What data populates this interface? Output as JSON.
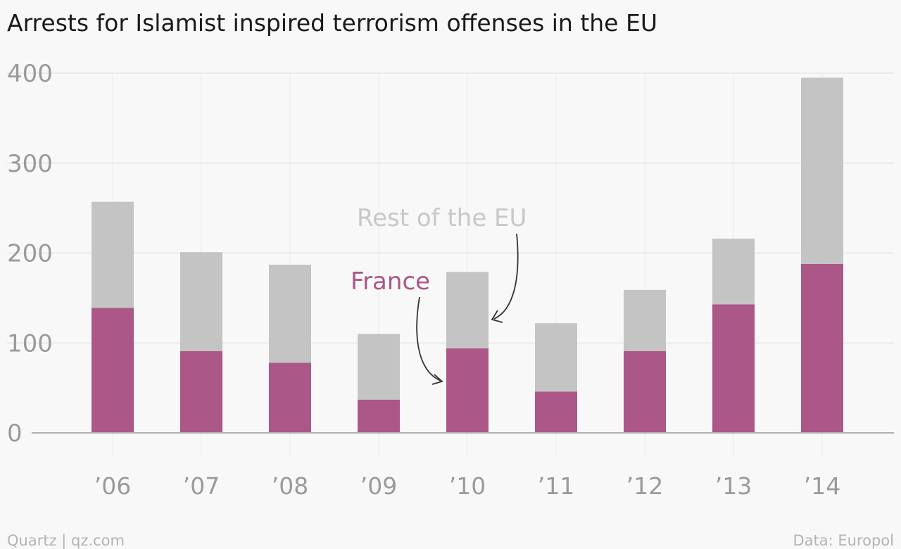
{
  "chart_data": {
    "type": "bar",
    "stacked": true,
    "title": "Arrests for Islamist inspired terrorism offenses in the EU",
    "categories": [
      "’06",
      "’07",
      "’08",
      "’09",
      "’10",
      "’11",
      "’12",
      "’13",
      "’14"
    ],
    "series": [
      {
        "name": "France",
        "color": "#ab5787",
        "values": [
          139,
          91,
          78,
          37,
          94,
          46,
          91,
          143,
          188
        ]
      },
      {
        "name": "Rest of the EU",
        "color": "#c4c4c4",
        "values": [
          118,
          110,
          109,
          73,
          85,
          76,
          68,
          73,
          207
        ]
      }
    ],
    "ylim": [
      0,
      400
    ],
    "yticks": [
      0,
      100,
      200,
      300,
      400
    ],
    "grid": true,
    "legend": "inline annotations"
  },
  "footer": {
    "source_left": "Quartz | qz.com",
    "source_right": "Data: Europol"
  },
  "colors": {
    "background": "#f8f8f8",
    "grid": "#e6e6e6",
    "axis": "#b0b0b0",
    "tick_text": "#9a9a9a",
    "title_text": "#1a1a1a",
    "annotation_arrow": "#333333"
  }
}
